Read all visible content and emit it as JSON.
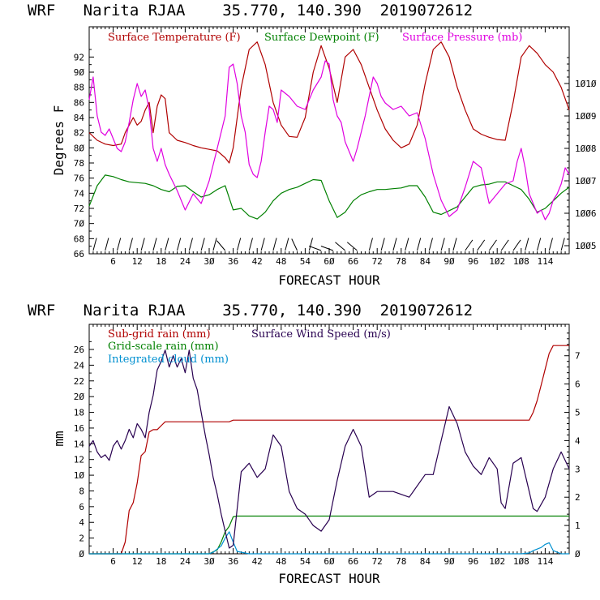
{
  "colors": {
    "temperature": "#b00000",
    "dewpoint": "#008000",
    "pressure": "#e000e0",
    "subgrid_rain": "#b00000",
    "gridscale_rain": "#008000",
    "cloud": "#0090d0",
    "wind_speed": "#280050",
    "axes": "#000000"
  },
  "chart_data": [
    {
      "type": "line",
      "title": "WRF   Narita RJAA    35.770, 140.390  2019072612",
      "xlabel": "FORECAST HOUR",
      "ylabel": "Degrees F",
      "xlim": [
        0,
        120
      ],
      "ylim": [
        66,
        96
      ],
      "y2lim": [
        1004.75,
        1011.75
      ],
      "x_ticks": [
        6,
        12,
        18,
        24,
        30,
        36,
        42,
        48,
        54,
        60,
        66,
        72,
        78,
        84,
        90,
        96,
        102,
        108,
        114
      ],
      "x_tick_labels": [
        "6",
        "12",
        "18",
        "24",
        "3Ø",
        "36",
        "42",
        "48",
        "54",
        "6Ø",
        "66",
        "72",
        "78",
        "84",
        "9Ø",
        "96",
        "1Ø2",
        "1Ø8",
        "114"
      ],
      "y_ticks": [
        66,
        68,
        70,
        72,
        74,
        76,
        78,
        80,
        82,
        84,
        86,
        88,
        90,
        92
      ],
      "y_tick_labels": [
        "66",
        "68",
        "7Ø",
        "72",
        "74",
        "76",
        "78",
        "8Ø",
        "82",
        "84",
        "86",
        "88",
        "9Ø",
        "92"
      ],
      "y2_ticks": [
        1005,
        1006,
        1007,
        1008,
        1009,
        1010
      ],
      "y2_tick_labels": [
        "1ØØ5",
        "1ØØ6",
        "1ØØ7",
        "1ØØ8",
        "1ØØ9",
        "1Ø1Ø"
      ],
      "legend": [
        "Surface Temperature (F)",
        "Surface Dewpoint (F)",
        "Surface Pressure (mb)"
      ],
      "series": [
        {
          "name": "Surface Temperature (F)",
          "axis": "left",
          "x": [
            0,
            2,
            4,
            6,
            8,
            9,
            10,
            11,
            12,
            13,
            14,
            15,
            16,
            17,
            18,
            19,
            20,
            22,
            24,
            26,
            28,
            30,
            32,
            34,
            35,
            36,
            38,
            40,
            42,
            44,
            46,
            48,
            50,
            52,
            54,
            56,
            58,
            60,
            62,
            64,
            66,
            68,
            70,
            72,
            74,
            76,
            78,
            80,
            82,
            84,
            86,
            88,
            90,
            92,
            94,
            96,
            98,
            100,
            102,
            104,
            106,
            108,
            110,
            112,
            114,
            116,
            118,
            120
          ],
          "values": [
            82,
            81,
            80.5,
            80.3,
            80.5,
            82,
            83,
            84,
            83,
            83.5,
            85,
            86,
            82,
            85.5,
            87,
            86.5,
            82,
            81,
            80.7,
            80.3,
            80,
            79.8,
            79.6,
            78.7,
            78,
            80,
            88,
            93,
            94,
            91,
            86,
            83,
            81.5,
            81.4,
            84,
            90,
            93.5,
            90.5,
            86,
            92,
            93,
            91,
            88,
            85,
            82.5,
            81,
            80,
            80.5,
            83,
            88.5,
            93,
            94,
            92,
            88,
            85,
            82.5,
            81.8,
            81.4,
            81.1,
            81,
            86,
            92,
            93.5,
            92.5,
            91,
            90,
            88,
            85
          ]
        },
        {
          "name": "Surface Dewpoint (F)",
          "axis": "left",
          "x": [
            0,
            2,
            4,
            6,
            8,
            10,
            12,
            14,
            16,
            18,
            20,
            22,
            24,
            26,
            28,
            30,
            32,
            34,
            36,
            38,
            40,
            42,
            44,
            46,
            48,
            50,
            52,
            54,
            56,
            58,
            60,
            62,
            64,
            66,
            68,
            70,
            72,
            74,
            76,
            78,
            80,
            82,
            84,
            86,
            88,
            90,
            92,
            94,
            96,
            98,
            100,
            102,
            104,
            106,
            108,
            110,
            112,
            114,
            116,
            118,
            120
          ],
          "values": [
            72.3,
            75,
            76.4,
            76.2,
            75.8,
            75.5,
            75.4,
            75.3,
            75,
            74.5,
            74.2,
            74.9,
            75,
            74.2,
            73.5,
            73.8,
            74.5,
            75,
            71.8,
            72,
            71,
            70.6,
            71.5,
            73,
            74,
            74.5,
            74.8,
            75.3,
            75.8,
            75.7,
            73,
            70.8,
            71.5,
            73,
            73.8,
            74.2,
            74.5,
            74.5,
            74.6,
            74.7,
            75,
            75,
            73.5,
            71.5,
            71.2,
            71.7,
            72.2,
            73.5,
            74.8,
            75.1,
            75.2,
            75.5,
            75.5,
            75,
            74.5,
            73.2,
            71.5,
            72,
            73,
            74,
            74.8
          ]
        },
        {
          "name": "Surface Pressure (mb)",
          "axis": "right",
          "x": [
            0,
            1,
            2,
            3,
            4,
            5,
            6,
            7,
            8,
            9,
            10,
            11,
            12,
            13,
            14,
            15,
            16,
            17,
            18,
            19,
            20,
            22,
            24,
            26,
            28,
            30,
            32,
            34,
            35,
            36,
            37,
            38,
            39,
            40,
            41,
            42,
            43,
            44,
            45,
            46,
            47,
            48,
            50,
            52,
            54,
            56,
            57,
            58,
            59,
            60,
            61,
            62,
            63,
            64,
            65,
            66,
            67,
            68,
            69,
            70,
            71,
            72,
            73,
            74,
            76,
            78,
            80,
            82,
            84,
            86,
            88,
            90,
            92,
            94,
            96,
            98,
            100,
            102,
            104,
            106,
            107,
            108,
            109,
            110,
            111,
            112,
            113,
            114,
            115,
            116,
            117,
            118,
            119,
            120
          ],
          "values": [
            1009.5,
            1010.2,
            1009.0,
            1008.5,
            1008.4,
            1008.6,
            1008.3,
            1008.0,
            1007.9,
            1008.2,
            1008.8,
            1009.5,
            1010.0,
            1009.6,
            1009.8,
            1009.2,
            1008.0,
            1007.6,
            1008.0,
            1007.5,
            1007.2,
            1006.7,
            1006.1,
            1006.6,
            1006.3,
            1007.0,
            1008.0,
            1009.0,
            1010.5,
            1010.6,
            1010.0,
            1009.0,
            1008.5,
            1007.5,
            1007.2,
            1007.1,
            1007.6,
            1008.5,
            1009.3,
            1009.2,
            1008.8,
            1009.8,
            1009.6,
            1009.3,
            1009.2,
            1009.8,
            1010.0,
            1010.2,
            1010.7,
            1010.6,
            1009.5,
            1009.0,
            1008.8,
            1008.2,
            1007.9,
            1007.6,
            1008.0,
            1008.5,
            1009.0,
            1009.6,
            1010.2,
            1010.0,
            1009.6,
            1009.4,
            1009.2,
            1009.3,
            1009.0,
            1009.1,
            1008.3,
            1007.2,
            1006.4,
            1005.9,
            1006.1,
            1006.8,
            1007.6,
            1007.4,
            1006.3,
            1006.6,
            1006.9,
            1007.0,
            1007.6,
            1008.0,
            1007.4,
            1006.6,
            1006.3,
            1006.0,
            1006.1,
            1005.8,
            1006.0,
            1006.4,
            1006.6,
            1006.9,
            1007.4,
            1007.2
          ]
        }
      ]
    },
    {
      "type": "line",
      "title": "WRF   Narita RJAA    35.770, 140.390  2019072612",
      "xlabel": "FORECAST HOUR",
      "ylabel": "mm",
      "xlim": [
        0,
        120
      ],
      "ylim": [
        0,
        29.2
      ],
      "y2lim": [
        0,
        8.11
      ],
      "x_ticks": [
        6,
        12,
        18,
        24,
        30,
        36,
        42,
        48,
        54,
        60,
        66,
        72,
        78,
        84,
        90,
        96,
        102,
        108,
        114
      ],
      "x_tick_labels": [
        "6",
        "12",
        "18",
        "24",
        "3Ø",
        "36",
        "42",
        "48",
        "54",
        "6Ø",
        "66",
        "72",
        "78",
        "84",
        "9Ø",
        "96",
        "1Ø2",
        "1Ø8",
        "114"
      ],
      "y_ticks": [
        0,
        2,
        4,
        6,
        8,
        10,
        12,
        14,
        16,
        18,
        20,
        22,
        24,
        26
      ],
      "y_tick_labels": [
        "Ø",
        "2",
        "4",
        "6",
        "8",
        "1Ø",
        "12",
        "14",
        "16",
        "18",
        "2Ø",
        "22",
        "24",
        "26"
      ],
      "y2_ticks": [
        0,
        1,
        2,
        3,
        4,
        5,
        6,
        7
      ],
      "y2_tick_labels": [
        "Ø",
        "1",
        "2",
        "3",
        "4",
        "5",
        "6",
        "7"
      ],
      "legend": [
        "Sub-grid rain (mm)",
        "Grid-scale rain (mm)",
        "Integrated cloud (mm)",
        "Surface Wind Speed (m/s)"
      ],
      "series": [
        {
          "name": "Sub-grid rain (mm)",
          "axis": "left",
          "x": [
            0,
            8,
            9,
            10,
            11,
            12,
            13,
            14,
            15,
            16,
            17,
            18,
            19,
            20,
            22,
            24,
            26,
            28,
            30,
            32,
            34,
            35,
            36,
            40,
            50,
            60,
            70,
            80,
            90,
            100,
            110,
            111,
            112,
            113,
            114,
            115,
            116,
            118,
            120
          ],
          "values": [
            0,
            0,
            1.5,
            5.5,
            6.5,
            9,
            12.5,
            13,
            15.5,
            15.8,
            15.8,
            16.3,
            16.8,
            16.8,
            16.8,
            16.8,
            16.8,
            16.8,
            16.8,
            16.8,
            16.8,
            16.8,
            17,
            17,
            17,
            17,
            17,
            17,
            17,
            17,
            17,
            18,
            19.5,
            21.5,
            23.5,
            25.5,
            26.5,
            26.5,
            26.5
          ]
        },
        {
          "name": "Grid-scale rain (mm)",
          "axis": "left",
          "x": [
            0,
            30,
            32,
            33,
            34,
            35,
            36,
            37,
            40,
            60,
            80,
            100,
            120
          ],
          "values": [
            0,
            0,
            0.5,
            1.5,
            2.8,
            3.5,
            4.7,
            4.8,
            4.8,
            4.8,
            4.8,
            4.8,
            4.8
          ]
        },
        {
          "name": "Integrated cloud (mm)",
          "axis": "left",
          "x": [
            0,
            30,
            31,
            32,
            33,
            34,
            35,
            36,
            37,
            40,
            60,
            80,
            100,
            108,
            110,
            111,
            112,
            113,
            114,
            115,
            116,
            118,
            120
          ],
          "values": [
            0,
            0,
            0.2,
            0.6,
            1.0,
            2.0,
            2.8,
            1.5,
            0.3,
            0,
            0,
            0,
            0,
            0,
            0.1,
            0.4,
            0.6,
            0.8,
            1.2,
            1.4,
            0.4,
            0,
            0
          ]
        },
        {
          "name": "Surface Wind Speed (m/s)",
          "axis": "right",
          "x": [
            0,
            1,
            2,
            3,
            4,
            5,
            6,
            7,
            8,
            9,
            10,
            11,
            12,
            13,
            14,
            15,
            16,
            17,
            18,
            19,
            20,
            21,
            22,
            23,
            24,
            25,
            26,
            27,
            28,
            29,
            30,
            31,
            32,
            33,
            34,
            35,
            36,
            38,
            40,
            42,
            44,
            46,
            48,
            50,
            52,
            54,
            56,
            58,
            60,
            62,
            64,
            66,
            68,
            70,
            72,
            76,
            80,
            84,
            86,
            88,
            90,
            92,
            94,
            96,
            98,
            100,
            102,
            103,
            104,
            106,
            108,
            110,
            111,
            112,
            114,
            116,
            118,
            120
          ],
          "values": [
            3.8,
            4.0,
            3.6,
            3.4,
            3.5,
            3.3,
            3.8,
            4.0,
            3.7,
            4.0,
            4.4,
            4.1,
            4.6,
            4.4,
            4.1,
            5.0,
            5.6,
            6.5,
            6.8,
            7.2,
            6.6,
            7.0,
            6.6,
            6.9,
            6.4,
            7.2,
            6.2,
            5.8,
            5.0,
            4.2,
            3.5,
            2.7,
            2.1,
            1.4,
            0.8,
            0.2,
            0.3,
            2.9,
            3.2,
            2.7,
            3.0,
            4.2,
            3.8,
            2.2,
            1.6,
            1.4,
            1.0,
            0.8,
            1.2,
            2.6,
            3.8,
            4.4,
            3.8,
            2.0,
            2.2,
            2.2,
            2.0,
            2.8,
            2.8,
            4.0,
            5.2,
            4.6,
            3.6,
            3.1,
            2.8,
            3.4,
            3.0,
            1.8,
            1.6,
            3.2,
            3.4,
            2.2,
            1.6,
            1.5,
            2.0,
            3.0,
            3.6,
            3.0
          ]
        }
      ]
    }
  ]
}
